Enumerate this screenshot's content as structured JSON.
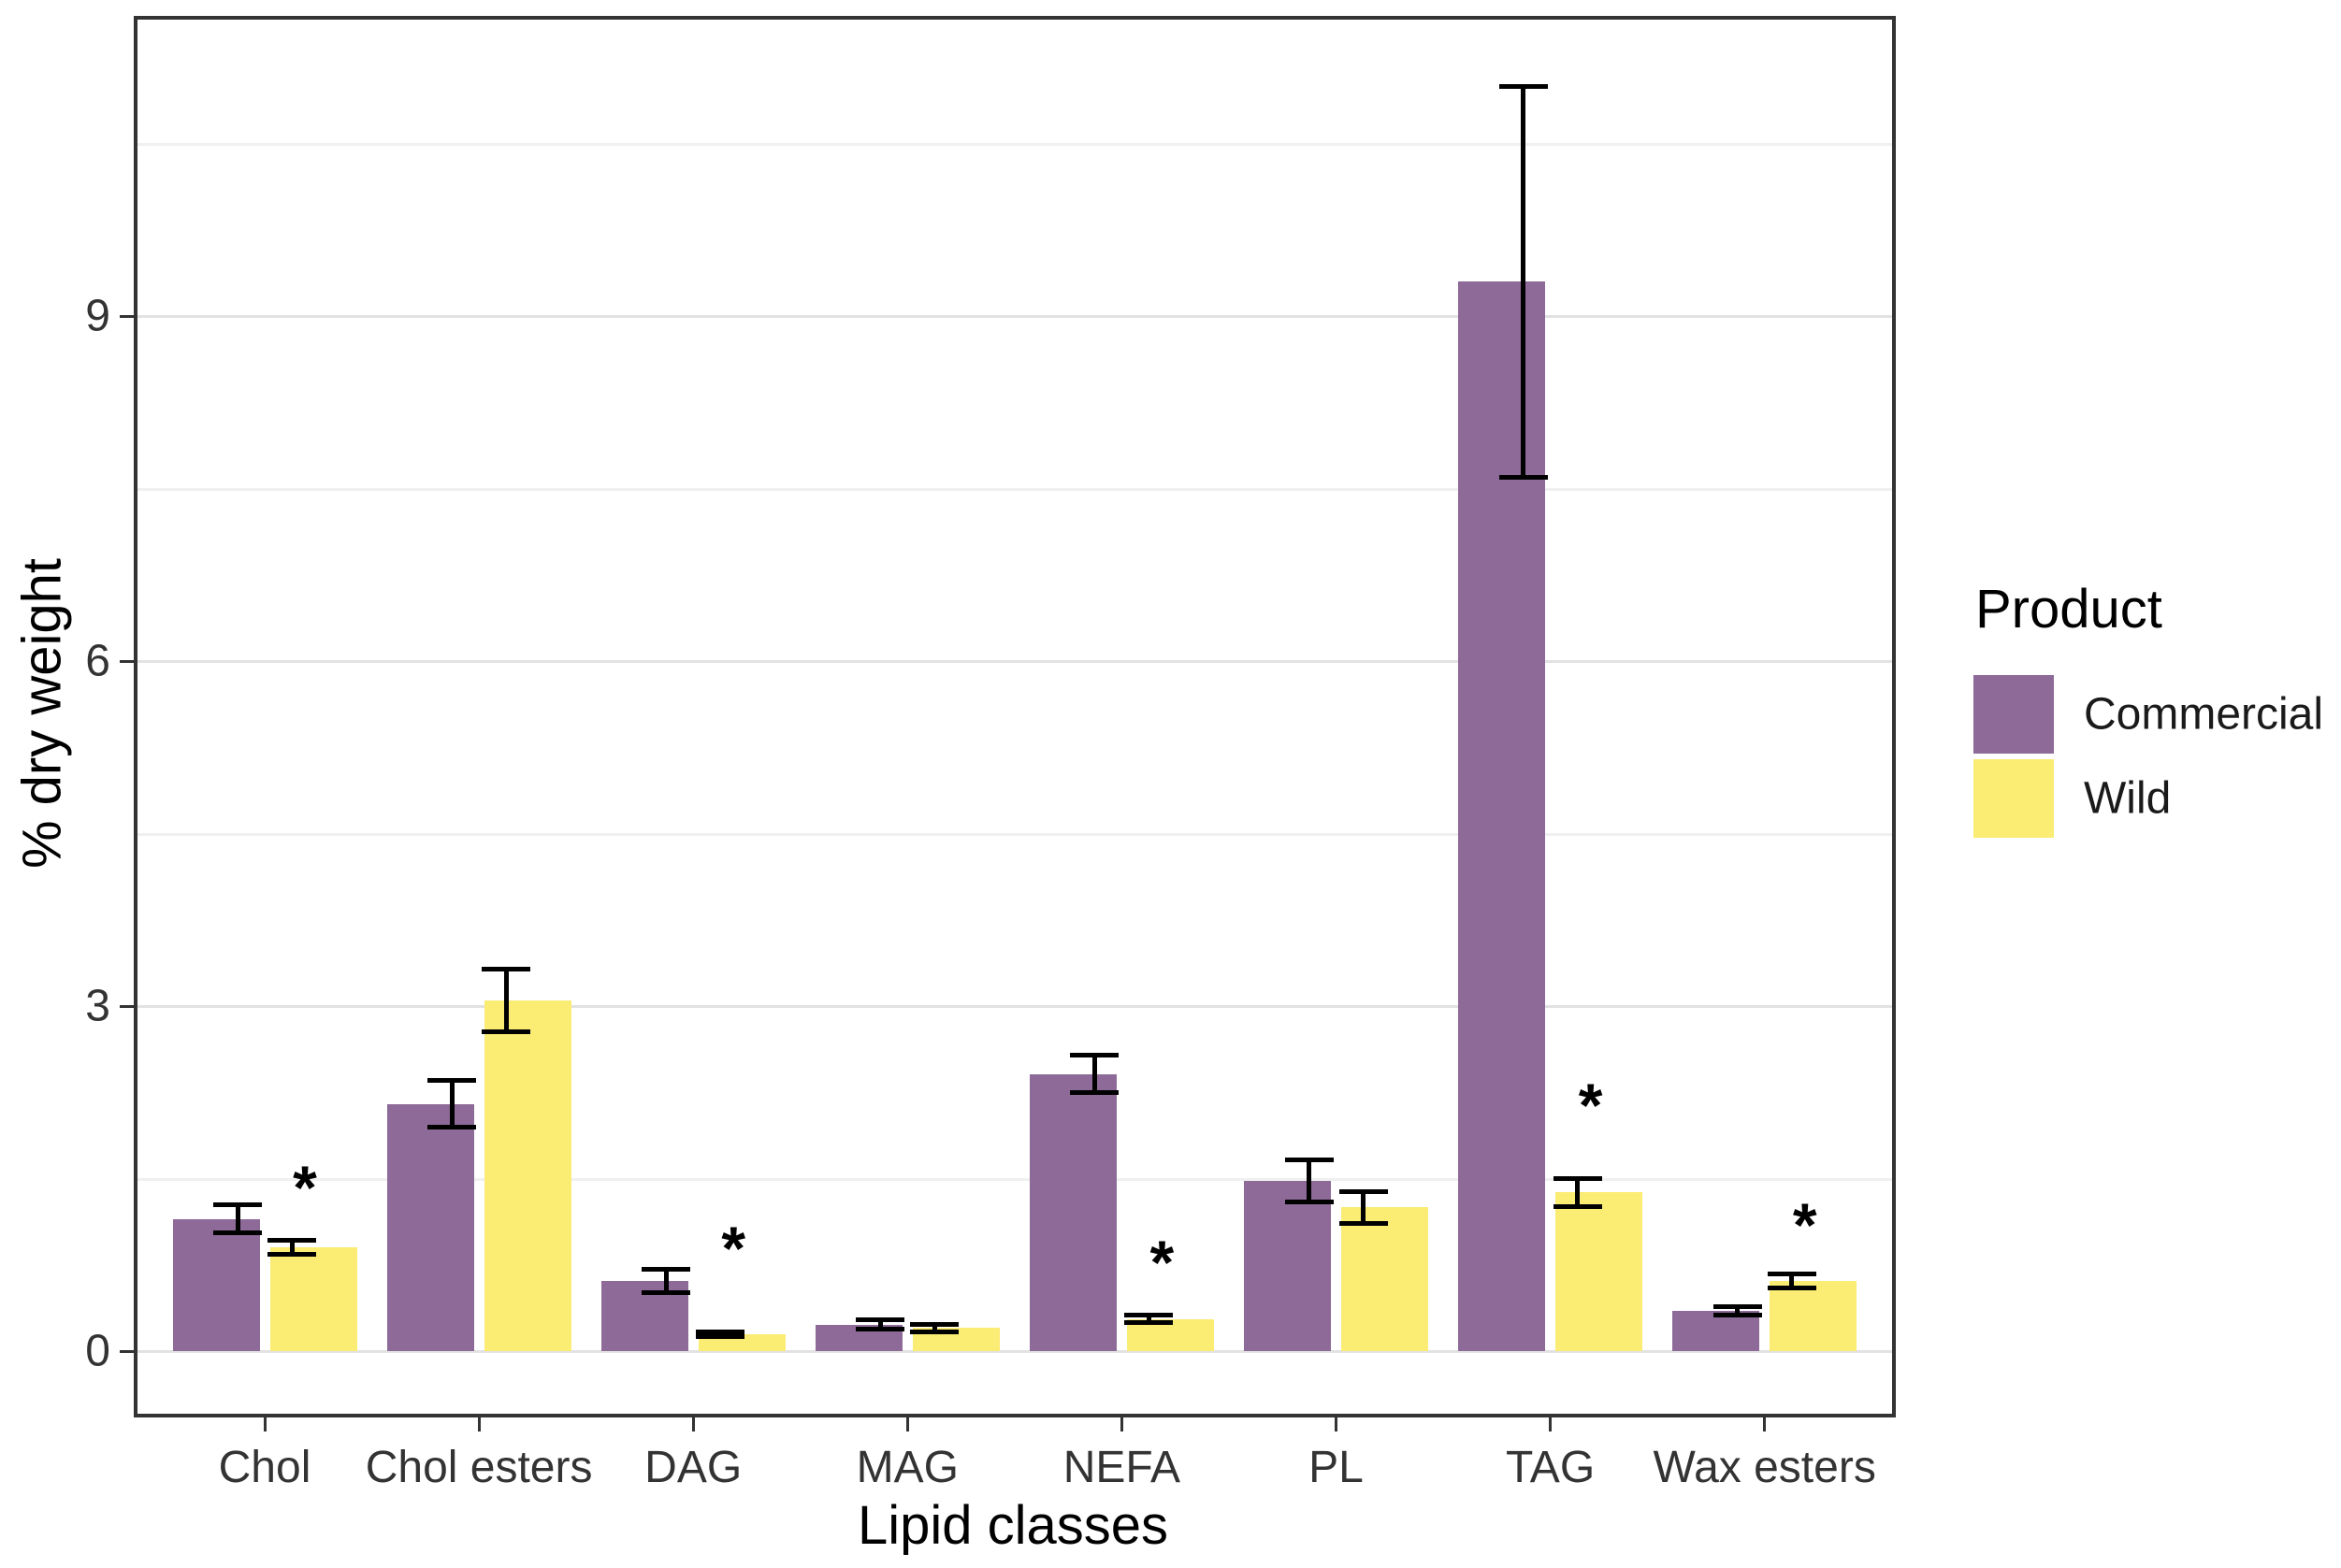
{
  "figure": {
    "background": "#ffffff"
  },
  "chart_data": {
    "type": "bar",
    "title": "",
    "xlabel": "Lipid classes",
    "ylabel": "% dry weight",
    "categories": [
      "Chol",
      "Chol esters",
      "DAG",
      "MAG",
      "NEFA",
      "PL",
      "TAG",
      "Wax esters"
    ],
    "series": [
      {
        "name": "Commercial",
        "color": "#8d6a97",
        "values": [
          1.15,
          2.15,
          0.61,
          0.23,
          2.41,
          1.48,
          9.3,
          0.35
        ],
        "errors": [
          0.12,
          0.2,
          0.1,
          0.04,
          0.16,
          0.18,
          1.7,
          0.04
        ]
      },
      {
        "name": "Wild",
        "color": "#fbec74",
        "values": [
          0.9,
          3.05,
          0.15,
          0.2,
          0.28,
          1.25,
          1.38,
          0.61
        ],
        "errors": [
          0.06,
          0.27,
          0.02,
          0.03,
          0.03,
          0.14,
          0.12,
          0.06
        ]
      }
    ],
    "significance_markers": [
      {
        "category": "Chol",
        "series": "Wild",
        "label": "*",
        "y": 1.53
      },
      {
        "category": "DAG",
        "series": "Wild",
        "label": "*",
        "y": 1.0
      },
      {
        "category": "NEFA",
        "series": "Wild",
        "label": "*",
        "y": 0.88
      },
      {
        "category": "TAG",
        "series": "Wild",
        "label": "*",
        "y": 2.24
      },
      {
        "category": "Wax esters",
        "series": "Wild",
        "label": "*",
        "y": 1.2
      }
    ],
    "y_axis": {
      "ticks": [
        0,
        3,
        6,
        9
      ],
      "minor_ticks": [
        1.5,
        4.5,
        7.5,
        10.5
      ],
      "range": [
        -0.55,
        11.6
      ]
    },
    "grid": true,
    "legend": {
      "title": "Product",
      "position": "right",
      "entries": [
        {
          "label": "Commercial",
          "color": "#8d6a97"
        },
        {
          "label": "Wild",
          "color": "#fbec74"
        }
      ]
    },
    "error_bar_color": "#000000",
    "panel_border_color": "#333333"
  }
}
